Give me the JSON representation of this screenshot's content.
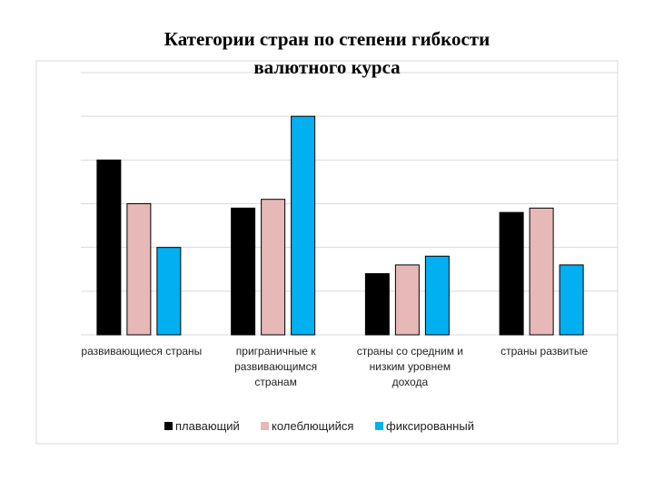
{
  "chart_data": {
    "type": "bar",
    "title": "Категории стран по степени гибкости\nвалютного курса",
    "categories": [
      [
        "развивающиеся страны"
      ],
      [
        "приграничные к",
        "развивающимся",
        "странам"
      ],
      [
        "страны со средним и",
        "низким уровнем",
        "дохода"
      ],
      [
        "страны развитые"
      ]
    ],
    "series": [
      {
        "name": "плавающий",
        "values": [
          40,
          29,
          14,
          28
        ],
        "color": "#000000"
      },
      {
        "name": "колеблющийся",
        "values": [
          30,
          31,
          16,
          29
        ],
        "color": "#e6b8b7"
      },
      {
        "name": "фиксированный",
        "values": [
          20,
          50,
          18,
          16
        ],
        "color": "#00b0f0"
      }
    ],
    "ylim": [
      0,
      60
    ],
    "grid": true,
    "legend": "bottom",
    "axis_labels_visible": false
  }
}
